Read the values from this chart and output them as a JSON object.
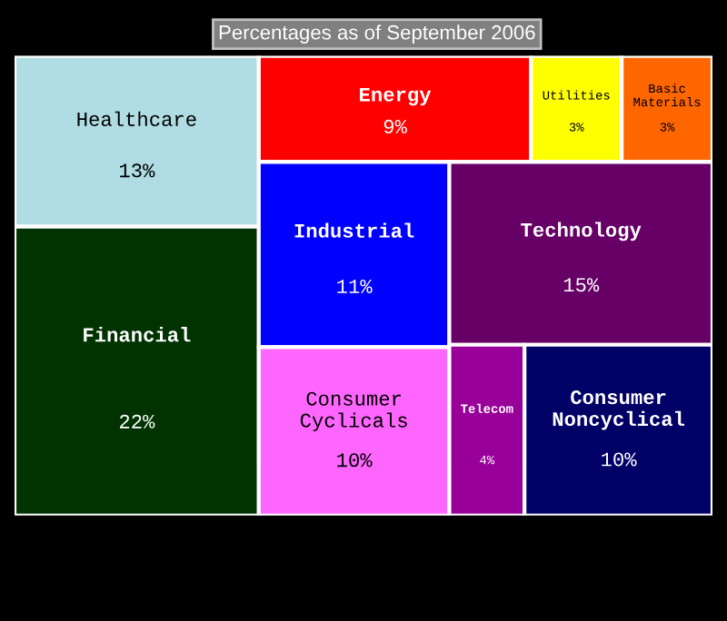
{
  "chart_data": {
    "type": "other",
    "title": "Percentages as of September 2006",
    "categories": [
      "Healthcare",
      "Financial",
      "Energy",
      "Utilities",
      "Basic Materials",
      "Industrial",
      "Consumer Cyclicals",
      "Technology",
      "Telecom",
      "Consumer Noncyclical"
    ],
    "values": [
      13,
      22,
      9,
      3,
      3,
      11,
      10,
      15,
      4,
      10
    ],
    "value_labels": [
      "13%",
      "22%",
      "9%",
      "3%",
      "3%",
      "11%",
      "10%",
      "15%",
      "4%",
      "10%"
    ],
    "colors": [
      "#b0dde4",
      "#003300",
      "#ff0000",
      "#ffff00",
      "#ff6600",
      "#0000ff",
      "#ff66ff",
      "#660066",
      "#990099",
      "#000066"
    ]
  }
}
